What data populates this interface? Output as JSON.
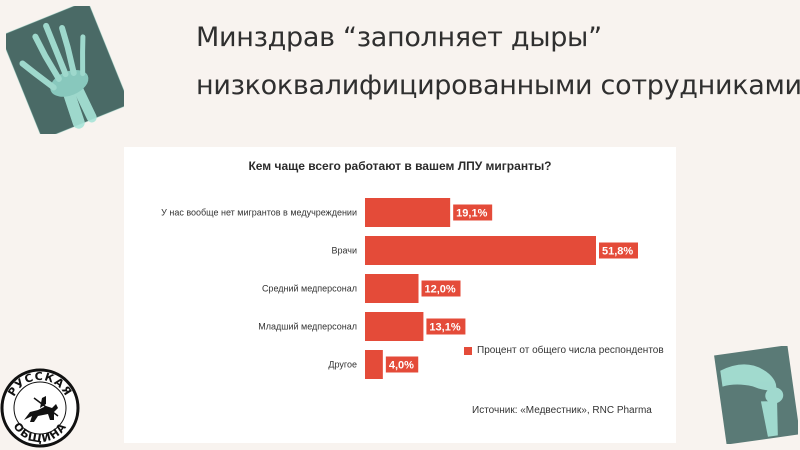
{
  "slide": {
    "title_line1": "Минздрав “заполняет дыры”",
    "title_line2": "низкоквалифицированными сотрудниками"
  },
  "logo": {
    "text_top": "РУССКАЯ",
    "text_bottom": "ОБЩИНА"
  },
  "colors": {
    "bar": "#e44b39",
    "background": "#f8f3ef",
    "xray": "#8fd3c7"
  },
  "chart_data": {
    "type": "bar",
    "orientation": "horizontal",
    "title": "Кем чаще всего работают в вашем ЛПУ мигранты?",
    "categories": [
      "У нас вообще нет мигрантов в медучреждении",
      "Врачи",
      "Средний медперсонал",
      "Младший медперсонал",
      "Другое"
    ],
    "values": [
      19.1,
      51.8,
      12.0,
      13.1,
      4.0
    ],
    "value_labels": [
      "19,1%",
      "51,8%",
      "12,0%",
      "13,1%",
      "4,0%"
    ],
    "series": [
      {
        "name": "Процент от общего числа респондентов",
        "values": [
          19.1,
          51.8,
          12.0,
          13.1,
          4.0
        ]
      }
    ],
    "xlim": [
      0,
      51.8
    ],
    "grid": false,
    "legend_position": "bottom-right",
    "source": "Источник: «Медвестник», RNC Pharma"
  }
}
